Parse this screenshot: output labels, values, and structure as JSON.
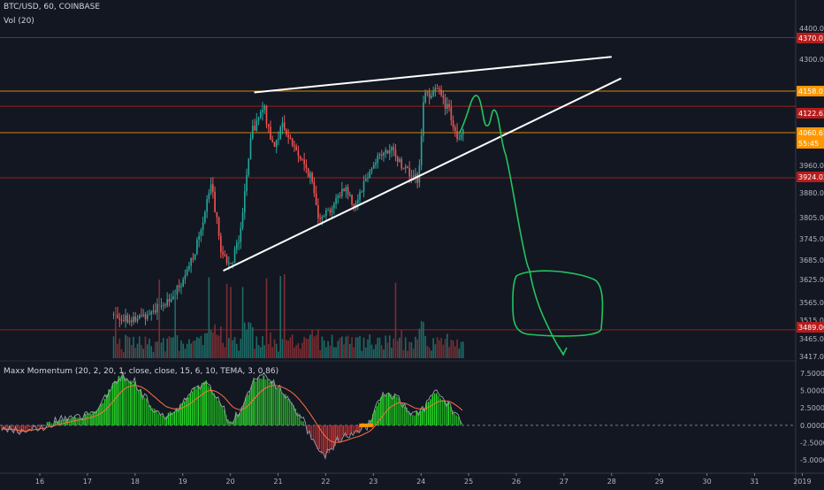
{
  "header": {
    "symbol_line": "BTC/USD, 60, COINBASE",
    "volume_line": "Vol (20)",
    "indicator_line": "Maxx Momentum (20, 2, 20, 1, close, close, 15, 6, 10, TEMA, 3, 0.86)"
  },
  "colors": {
    "background": "#131722",
    "bull": "#26a69a",
    "bear": "#ef5350",
    "bull_volume": "#1d6b65",
    "bear_volume": "#7a2e33",
    "hline_red": "#b71c1c",
    "hline_orange": "#ff9800",
    "trendline": "#ffffff",
    "drawing": "#22c55e",
    "hist_up": "#26d426",
    "hist_down": "#d32f2f"
  },
  "chart_data": [
    {
      "type": "candlestick",
      "title": "BTC/USD, 60, COINBASE",
      "x_ticks": [
        "16",
        "17",
        "18",
        "19",
        "20",
        "21",
        "22",
        "23",
        "24",
        "25",
        "26",
        "27",
        "28",
        "29",
        "30",
        "31",
        "2019"
      ],
      "y_ticks": [
        "4400.00",
        "4300.00",
        "3960.00",
        "3880.00",
        "3805.00",
        "3745.00",
        "3685.00",
        "3625.00",
        "3565.00",
        "3515.00",
        "3465.00",
        "3417.00"
      ],
      "price_labels": [
        {
          "text": "4370.01",
          "kind": "red"
        },
        {
          "text": "4158.01",
          "kind": "orange"
        },
        {
          "text": "4122.63",
          "kind": "red"
        },
        {
          "text": "4060.65",
          "kind": "orange"
        },
        {
          "text": "55:45",
          "kind": "orange"
        },
        {
          "text": "3924.02",
          "kind": "red"
        },
        {
          "text": "3489.00",
          "kind": "red"
        }
      ],
      "horizontal_levels": [
        4370.01,
        4158.01,
        4122.63,
        4060.65,
        3924.02,
        3489.0
      ],
      "waypoints": [
        {
          "day": 17.6,
          "price": 3530
        },
        {
          "day": 18.0,
          "price": 3515
        },
        {
          "day": 18.6,
          "price": 3560
        },
        {
          "day": 19.0,
          "price": 3612
        },
        {
          "day": 19.3,
          "price": 3730
        },
        {
          "day": 19.6,
          "price": 3905
        },
        {
          "day": 19.8,
          "price": 3715
        },
        {
          "day": 20.0,
          "price": 3665
        },
        {
          "day": 20.2,
          "price": 3760
        },
        {
          "day": 20.45,
          "price": 4060
        },
        {
          "day": 20.7,
          "price": 4120
        },
        {
          "day": 20.9,
          "price": 4020
        },
        {
          "day": 21.1,
          "price": 4080
        },
        {
          "day": 21.4,
          "price": 4000
        },
        {
          "day": 21.7,
          "price": 3920
        },
        {
          "day": 21.85,
          "price": 3810
        },
        {
          "day": 22.1,
          "price": 3830
        },
        {
          "day": 22.4,
          "price": 3900
        },
        {
          "day": 22.6,
          "price": 3840
        },
        {
          "day": 22.8,
          "price": 3910
        },
        {
          "day": 23.1,
          "price": 3990
        },
        {
          "day": 23.4,
          "price": 4005
        },
        {
          "day": 23.6,
          "price": 3960
        },
        {
          "day": 23.95,
          "price": 3915
        },
        {
          "day": 24.05,
          "price": 4140
        },
        {
          "day": 24.3,
          "price": 4170
        },
        {
          "day": 24.6,
          "price": 4110
        },
        {
          "day": 24.75,
          "price": 4035
        },
        {
          "day": 24.9,
          "price": 4058
        }
      ],
      "trendlines": [
        {
          "from": {
            "day": 20.5,
            "price": 4155
          },
          "to": {
            "day": 28.0,
            "price": 4308
          }
        },
        {
          "from": {
            "day": 19.85,
            "price": 3652
          },
          "to": {
            "day": 28.2,
            "price": 4215
          }
        }
      ]
    },
    {
      "type": "bar",
      "title": "Vol (20)"
    },
    {
      "type": "area",
      "title": "Maxx Momentum (20, 2, 20, 1, close, close, 15, 6, 10, TEMA, 3, 0.86)",
      "y_ticks": [
        "7.5000",
        "5.0000",
        "2.5000",
        "0.0000",
        "-2.5000",
        "-5.0000"
      ],
      "ylim": [
        -6.5,
        9
      ],
      "waypoints": [
        {
          "day": 15.2,
          "value": -0.5
        },
        {
          "day": 15.6,
          "value": -1.0
        },
        {
          "day": 16.0,
          "value": 0.0
        },
        {
          "day": 16.4,
          "value": 0.6
        },
        {
          "day": 16.8,
          "value": 1.0
        },
        {
          "day": 17.2,
          "value": 2.0
        },
        {
          "day": 17.5,
          "value": 5.5
        },
        {
          "day": 17.7,
          "value": 7.2
        },
        {
          "day": 18.0,
          "value": 6.0
        },
        {
          "day": 18.3,
          "value": 3.0
        },
        {
          "day": 18.6,
          "value": 1.0
        },
        {
          "day": 18.9,
          "value": 2.5
        },
        {
          "day": 19.2,
          "value": 5.0
        },
        {
          "day": 19.5,
          "value": 6.3
        },
        {
          "day": 19.8,
          "value": 3.0
        },
        {
          "day": 20.0,
          "value": 0.5
        },
        {
          "day": 20.2,
          "value": 2.0
        },
        {
          "day": 20.5,
          "value": 6.5
        },
        {
          "day": 20.7,
          "value": 7.0
        },
        {
          "day": 21.0,
          "value": 5.5
        },
        {
          "day": 21.3,
          "value": 3.0
        },
        {
          "day": 21.6,
          "value": -0.5
        },
        {
          "day": 21.8,
          "value": -3.0
        },
        {
          "day": 22.0,
          "value": -4.5
        },
        {
          "day": 22.3,
          "value": -2.0
        },
        {
          "day": 22.6,
          "value": -1.0
        },
        {
          "day": 22.9,
          "value": 0.0
        },
        {
          "day": 23.2,
          "value": 4.5
        },
        {
          "day": 23.5,
          "value": 4.2
        },
        {
          "day": 23.8,
          "value": 1.5
        },
        {
          "day": 24.0,
          "value": 2.0
        },
        {
          "day": 24.3,
          "value": 4.5
        },
        {
          "day": 24.6,
          "value": 3.0
        },
        {
          "day": 24.9,
          "value": -0.2
        }
      ]
    }
  ]
}
